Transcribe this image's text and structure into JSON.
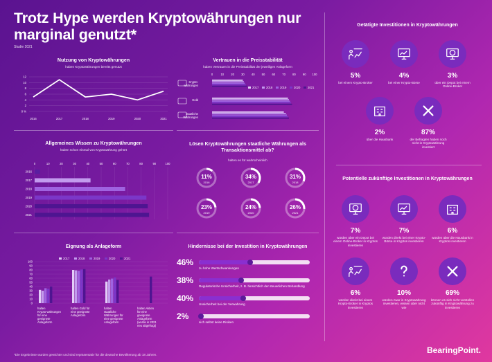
{
  "header": {
    "title": "Trotz Hype werden Kryptowährungen nur marginal genutzt*",
    "subtitle": "Studie 2021",
    "footnote": "*Die Ergebnisse wurden gewichtet und sind repräsentativ für die deutsche Bevölkerung ab 18 Jahren.",
    "brand": "BearingPoint."
  },
  "chart_data": [
    {
      "type": "line",
      "title": "Nutzung von Kryptowährungen",
      "subtitle": "haben Kryptowährungen bereits genutzt",
      "x": [
        "2016",
        "2017",
        "2018",
        "2019",
        "2020",
        "2021"
      ],
      "values": [
        5,
        11,
        5,
        6,
        4,
        7
      ],
      "yticks": [
        "12",
        "10",
        "8",
        "6",
        "4",
        "2",
        "0 %"
      ],
      "ylim": [
        0,
        12
      ]
    },
    {
      "type": "bar",
      "orientation": "horizontal",
      "title": "Allgemeines Wissen zu Kryptowährungen",
      "subtitle": "haben schon einmal von Kryptowährung gehört",
      "categories": [
        "2016",
        "2017",
        "2018",
        "2019",
        "2020",
        "2021"
      ],
      "values": [
        4,
        42,
        68,
        84,
        85,
        86
      ],
      "xticks": [
        "0",
        "10",
        "20",
        "30",
        "40",
        "50",
        "60",
        "70",
        "80",
        "90",
        "100"
      ],
      "xlim": [
        0,
        100
      ]
    },
    {
      "type": "bar",
      "orientation": "horizontal",
      "title": "Vertrauen in die Preisstabilität",
      "subtitle": "haben Vertrauen in die Preisstabilität der jeweiligen Anlageform",
      "categories": [
        "Krypto-währungen",
        "Gold",
        "staatliche Währungen"
      ],
      "legend": [
        "2017",
        "2018",
        "2019",
        "2020",
        "2021"
      ],
      "series": [
        {
          "values": [
            30,
            74,
            70
          ]
        },
        {
          "values": [
            31,
            75,
            72
          ]
        },
        {
          "values": [
            32,
            76,
            73
          ]
        },
        {
          "values": [
            33,
            77,
            74
          ]
        },
        {
          "values": [
            34,
            78,
            75
          ]
        }
      ],
      "xticks": [
        "0",
        "10",
        "20",
        "30",
        "40",
        "50",
        "60",
        "70",
        "80",
        "90",
        "100"
      ],
      "xlim": [
        0,
        100
      ]
    },
    {
      "type": "pie",
      "title": "Lösen Kryptowährungen staatliche Währungen als Transaktionsmittel ab?",
      "subtitle": "halten es für wahrscheinlich",
      "categories": [
        "2016",
        "2017",
        "2018",
        "2019",
        "2020",
        "2021"
      ],
      "values": [
        11,
        34,
        31,
        23,
        24,
        26
      ],
      "labels": [
        "11%",
        "34%",
        "31%",
        "23%",
        "24%",
        "26%"
      ]
    },
    {
      "type": "bar",
      "title": "Eignung als Anlageform",
      "legend": [
        "2017",
        "2018",
        "2019",
        "2020",
        "2021"
      ],
      "categories": [
        "halten Krypto-währungen für eine geeignete Anlageform",
        "halten Gold für eine geeignete Anlageform",
        "halten staatliche Währungen für eine geeignete Anlageform",
        "halten Aktien für eine geeignete Anlageform (wurde in 2021 neu abgefragt)"
      ],
      "series": [
        {
          "values": [
            32,
            80,
            52,
            null
          ]
        },
        {
          "values": [
            30,
            79,
            57,
            null
          ]
        },
        {
          "values": [
            36,
            78,
            59,
            null
          ]
        },
        {
          "values": [
            35,
            81,
            62,
            null
          ]
        },
        {
          "values": [
            40,
            82,
            56,
            64
          ]
        }
      ],
      "yticks": [
        "100",
        "90",
        "80",
        "70",
        "60",
        "50",
        "40",
        "30",
        "20",
        "10",
        "0"
      ],
      "ylim": [
        0,
        100
      ]
    },
    {
      "type": "bar",
      "title": "Hindernisse bei der Investition in Kryptowährungen",
      "categories": [
        "zu hohe Wertschwankungen",
        "Regulatorische Unsicherheit, z. B. hinsichtlich der steuerlichen Behandlung",
        "Unsicherheit bei der Verwahrung",
        "sich selbst keine Risiken"
      ],
      "values": [
        46,
        38,
        40,
        2
      ],
      "labels": [
        "46%",
        "38%",
        "40%",
        "2%"
      ],
      "xlim": [
        0,
        100
      ]
    }
  ],
  "invest_current": {
    "title": "Getätigte Investitionen in Kryptowährungen",
    "items": [
      {
        "icon": "presenter-chart-icon",
        "pct": "5%",
        "desc": "bei einem Krypto-Broker"
      },
      {
        "icon": "monitor-chart-icon",
        "pct": "4%",
        "desc": "bei einer Krypto-Börse"
      },
      {
        "icon": "monitor-euro-icon",
        "pct": "3%",
        "desc": "über ein Depot bei einem Online-Broker"
      },
      {
        "icon": "bank-building-icon",
        "pct": "2%",
        "desc": "über die Hausbank"
      },
      {
        "icon": "cross-icon",
        "pct": "87%",
        "desc": "der Befragten haben noch nicht in Kryptowährung investiert"
      }
    ]
  },
  "invest_future": {
    "title": "Potentielle zukünftige Investitionen in Kryptowährungen",
    "items": [
      {
        "icon": "monitor-euro-icon",
        "pct": "7%",
        "desc": "würden über ein Depot bei einem Online-Broker in Kryptos investieren"
      },
      {
        "icon": "monitor-chart-icon",
        "pct": "7%",
        "desc": "würden direkt bei einer Krypto-Börse in Kryptos investieren"
      },
      {
        "icon": "bank-building-icon",
        "pct": "6%",
        "desc": "würden über die Hausbank in Kryptos investieren"
      },
      {
        "icon": "presenter-chart-icon",
        "pct": "6%",
        "desc": "würden direkt bei einem Krypto-Broker in Kryptos investieren"
      },
      {
        "icon": "question-icon",
        "pct": "10%",
        "desc": "würden zwar in Kryptowährung investieren, wissen aber nicht wie"
      },
      {
        "icon": "cross-icon",
        "pct": "69%",
        "desc": "können es sich nicht vorstellen zukünftig in Kryptowährung zu investieren"
      }
    ]
  },
  "colors": {
    "bar_light": "#c9a8f0",
    "bar_mid": "#9b5de0",
    "bar_dark": "#5a1ea0",
    "accent": "#ffffff",
    "circle": "#7a2bbd"
  }
}
